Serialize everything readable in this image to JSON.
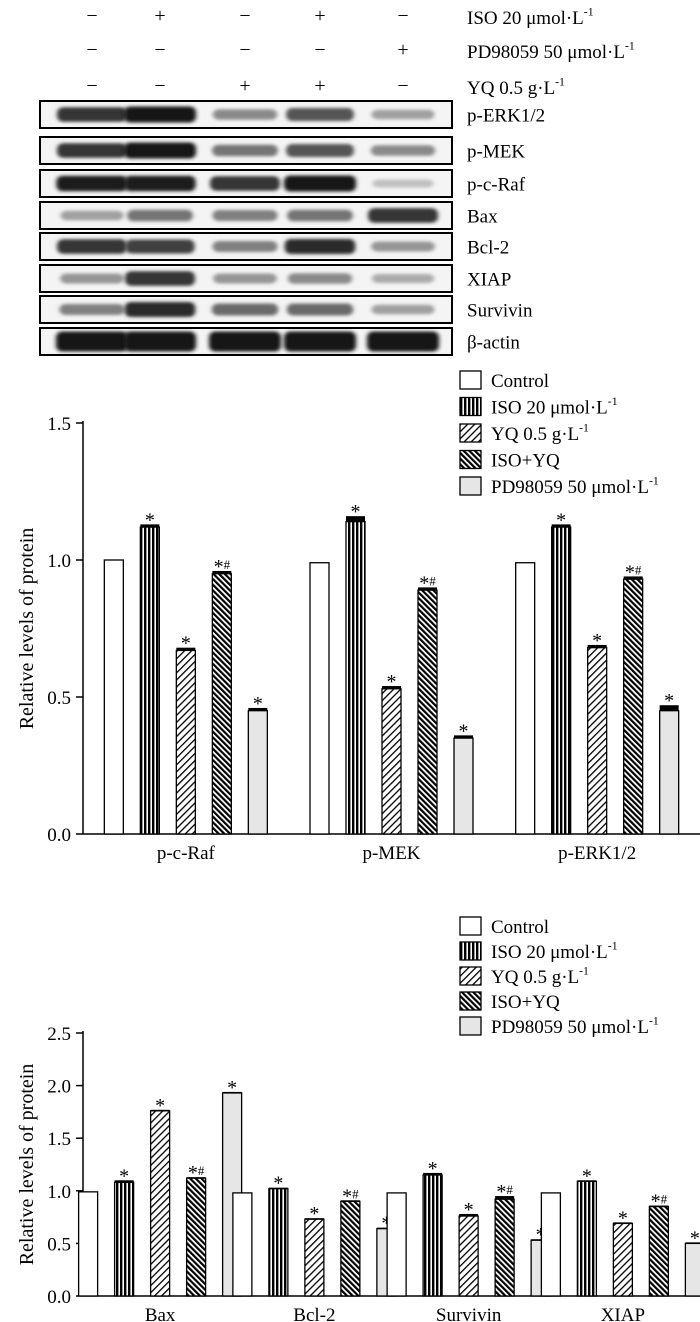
{
  "blot": {
    "conditions": [
      {
        "label": "ISO 20 μmol·L",
        "sup": "-1",
        "signs": [
          "−",
          "+",
          "−",
          "+",
          "−"
        ]
      },
      {
        "label": "PD98059 50 μmol·L",
        "sup": "-1",
        "signs": [
          "−",
          "−",
          "−",
          "−",
          "+"
        ]
      },
      {
        "label": "YQ 0.5 g·L",
        "sup": "-1",
        "signs": [
          "−",
          "−",
          "+",
          "+",
          "−"
        ]
      }
    ],
    "bands": [
      {
        "label": "p-ERK1/2",
        "intensity": [
          0.85,
          1.0,
          0.45,
          0.7,
          0.35
        ]
      },
      {
        "label": "p-MEK",
        "intensity": [
          0.85,
          1.0,
          0.55,
          0.7,
          0.45
        ]
      },
      {
        "label": "p-c-Raf",
        "intensity": [
          0.95,
          0.95,
          0.85,
          1.0,
          0.2
        ]
      },
      {
        "label": "Bax",
        "intensity": [
          0.35,
          0.55,
          0.5,
          0.55,
          0.85
        ]
      },
      {
        "label": "Bcl-2",
        "intensity": [
          0.85,
          0.8,
          0.5,
          0.9,
          0.4
        ]
      },
      {
        "label": "XIAP",
        "intensity": [
          0.4,
          0.85,
          0.4,
          0.45,
          0.3
        ]
      },
      {
        "label": "Survivin",
        "intensity": [
          0.5,
          0.9,
          0.6,
          0.6,
          0.35
        ]
      },
      {
        "label": "β-actin",
        "intensity": [
          1.0,
          1.0,
          1.0,
          1.0,
          1.0
        ]
      }
    ]
  },
  "chart_data": [
    {
      "type": "bar",
      "ylabel": "Relative levels of protein",
      "ylim": [
        0,
        1.5
      ],
      "yticks": [
        "0.0",
        "0.5",
        "1.0",
        "1.5"
      ],
      "categories": [
        "p-c-Raf",
        "p-MEK",
        "p-ERK1/2"
      ],
      "legend_position": "top-right",
      "series": [
        {
          "name": "Control",
          "sup": "",
          "pattern": "white",
          "values": [
            1.0,
            0.99,
            0.99
          ],
          "errors": [
            0,
            0,
            0
          ],
          "marks": [
            "",
            "",
            ""
          ]
        },
        {
          "name": "ISO 20 μmol·L",
          "sup": "-1",
          "pattern": "vertical",
          "values": [
            1.12,
            1.14,
            1.12
          ],
          "errors": [
            0.01,
            0.02,
            0.01
          ],
          "marks": [
            "*",
            "*",
            "*"
          ]
        },
        {
          "name": "YQ 0.5 g·L",
          "sup": "-1",
          "pattern": "diag-light",
          "values": [
            0.67,
            0.53,
            0.68
          ],
          "errors": [
            0.01,
            0.01,
            0.01
          ],
          "marks": [
            "*",
            "*",
            "*"
          ]
        },
        {
          "name": "ISO+YQ",
          "sup": "",
          "pattern": "diag-dense",
          "values": [
            0.95,
            0.89,
            0.93
          ],
          "errors": [
            0.01,
            0.01,
            0.01
          ],
          "marks": [
            "*#",
            "*#",
            "*#"
          ]
        },
        {
          "name": "PD98059 50 μmol·L",
          "sup": "-1",
          "pattern": "gray",
          "values": [
            0.45,
            0.35,
            0.45
          ],
          "errors": [
            0.01,
            0.01,
            0.02
          ],
          "marks": [
            "*",
            "*",
            "*"
          ]
        }
      ]
    },
    {
      "type": "bar",
      "ylabel": "Relative levels of protein",
      "ylim": [
        0,
        2.5
      ],
      "yticks": [
        "0.0",
        "0.5",
        "1.0",
        "1.5",
        "2.0",
        "2.5"
      ],
      "categories": [
        "Bax",
        "Bcl-2",
        "Survivin",
        "XIAP"
      ],
      "legend_position": "right",
      "series": [
        {
          "name": "Control",
          "sup": "",
          "pattern": "white",
          "values": [
            0.99,
            0.98,
            0.98,
            0.98
          ],
          "errors": [
            0,
            0,
            0,
            0
          ],
          "marks": [
            "",
            "",
            "",
            ""
          ]
        },
        {
          "name": "ISO 20 μmol·L",
          "sup": "-1",
          "pattern": "vertical",
          "values": [
            1.08,
            1.02,
            1.15,
            1.09
          ],
          "errors": [
            0.02,
            0.01,
            0.02,
            0.01
          ],
          "marks": [
            "*",
            "*",
            "*",
            "*"
          ]
        },
        {
          "name": "YQ 0.5 g·L",
          "sup": "-1",
          "pattern": "diag-light",
          "values": [
            1.76,
            0.73,
            0.76,
            0.69
          ],
          "errors": [
            0.01,
            0.01,
            0.02,
            0.01
          ],
          "marks": [
            "*",
            "*",
            "*",
            "*"
          ]
        },
        {
          "name": "ISO+YQ",
          "sup": "",
          "pattern": "diag-dense",
          "values": [
            1.12,
            0.9,
            0.92,
            0.85
          ],
          "errors": [
            0.01,
            0.01,
            0.03,
            0.01
          ],
          "marks": [
            "*#",
            "*#",
            "*#",
            "*#"
          ]
        },
        {
          "name": "PD98059 50 μmol·L",
          "sup": "-1",
          "pattern": "gray",
          "values": [
            1.93,
            0.64,
            0.53,
            0.5
          ],
          "errors": [
            0.01,
            0.01,
            0.01,
            0.01
          ],
          "marks": [
            "*",
            "*",
            "*",
            "*"
          ]
        }
      ]
    }
  ]
}
